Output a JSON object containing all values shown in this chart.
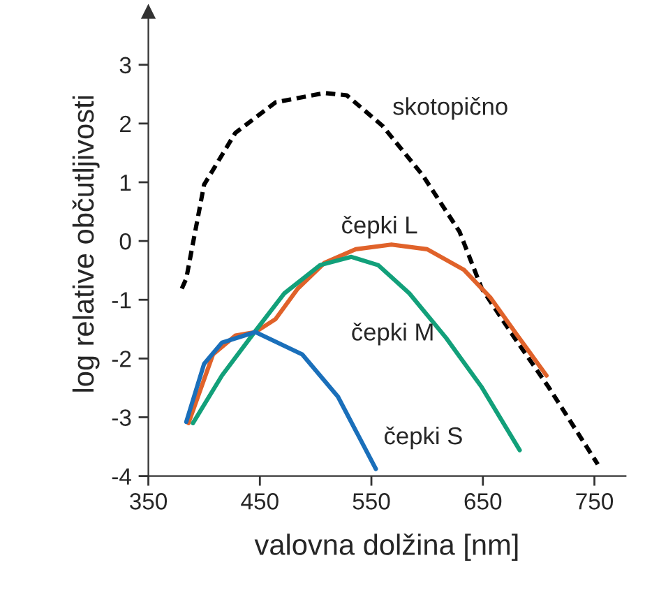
{
  "chart_data": {
    "type": "line",
    "xlabel": "valovna dolžina [nm]",
    "ylabel": "log relative občutljivosti",
    "xlim": [
      350,
      778
    ],
    "xticks": [
      350,
      450,
      550,
      650,
      750
    ],
    "ylim": [
      -4,
      3.9
    ],
    "yticks": [
      -4,
      -3,
      -2,
      -1,
      0,
      1,
      2,
      3
    ],
    "grid": false,
    "legend": false,
    "series": [
      {
        "name": "skotopično",
        "color": "#000000",
        "line_style": "dashed",
        "x": [
          380,
          384,
          400,
          428,
          464,
          508,
          528,
          560,
          596,
          629,
          649,
          677,
          709,
          753
        ],
        "values": [
          -0.81,
          -0.64,
          0.96,
          1.84,
          2.36,
          2.52,
          2.48,
          1.96,
          1.12,
          0.16,
          -0.81,
          -1.61,
          -2.49,
          -3.8
        ]
      },
      {
        "name": "čepki L",
        "color": "#e0622a",
        "line_style": "solid",
        "x": [
          386,
          408,
          428,
          446,
          464,
          484,
          508,
          536,
          568,
          600,
          633,
          657,
          681,
          707
        ],
        "values": [
          -3.1,
          -1.93,
          -1.61,
          -1.55,
          -1.33,
          -0.81,
          -0.37,
          -0.14,
          -0.06,
          -0.14,
          -0.49,
          -0.97,
          -1.61,
          -2.29
        ]
      },
      {
        "name": "čepki M",
        "color": "#12a07a",
        "line_style": "solid",
        "x": [
          390,
          416,
          446,
          472,
          504,
          532,
          556,
          584,
          617,
          649,
          683
        ],
        "values": [
          -3.1,
          -2.29,
          -1.53,
          -0.89,
          -0.41,
          -0.27,
          -0.41,
          -0.89,
          -1.65,
          -2.49,
          -3.56
        ]
      },
      {
        "name": "čepki S",
        "color": "#1a6fba",
        "line_style": "solid",
        "x": [
          384,
          400,
          416,
          446,
          488,
          520,
          554
        ],
        "values": [
          -3.08,
          -2.09,
          -1.73,
          -1.55,
          -1.93,
          -2.65,
          -3.88
        ]
      }
    ]
  }
}
